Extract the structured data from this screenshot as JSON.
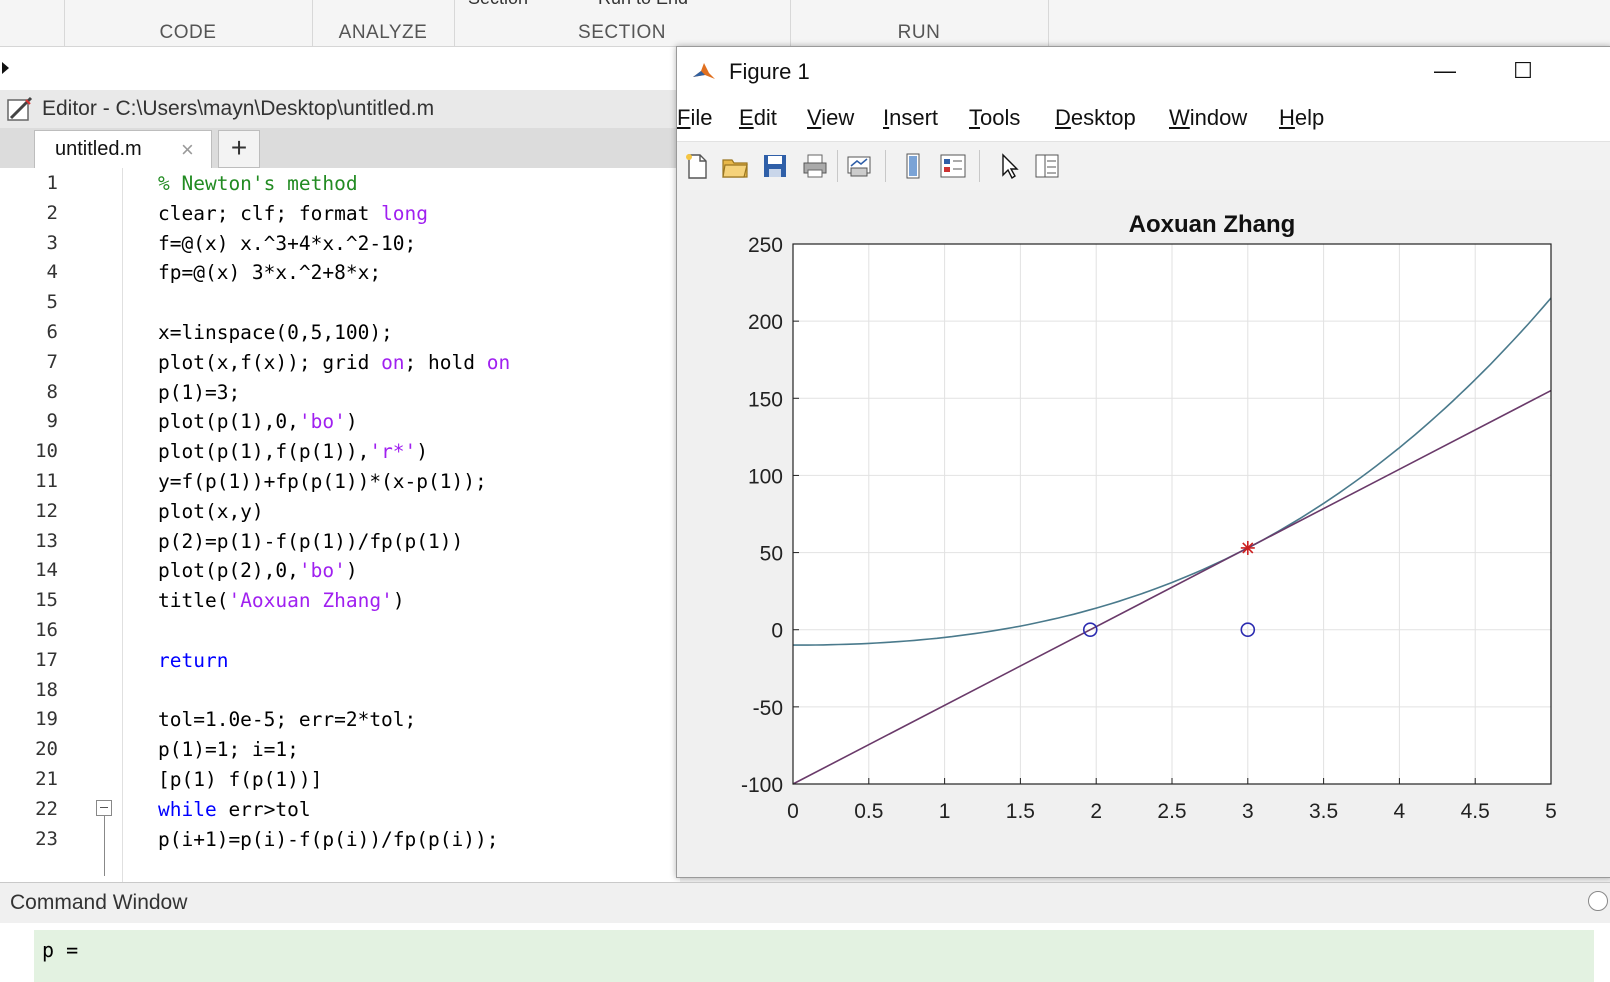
{
  "toolstrip": {
    "sections": [
      "CODE",
      "ANALYZE",
      "SECTION",
      "RUN"
    ],
    "partial_items": [
      "Section",
      "Run to End"
    ]
  },
  "editor": {
    "title": "Editor - C:\\Users\\mayn\\Desktop\\untitled.m",
    "tab_label": "untitled.m",
    "tab_close": "×",
    "new_tab": "+",
    "lines": [
      {
        "n": "1",
        "parts": [
          {
            "t": "% Newton's method",
            "c": "comment"
          }
        ]
      },
      {
        "n": "2",
        "parts": [
          {
            "t": "clear; clf; format ",
            "c": "pl"
          },
          {
            "t": "long",
            "c": "str"
          }
        ]
      },
      {
        "n": "3",
        "parts": [
          {
            "t": "f=@(x) x.^3+4*x.^2-10;",
            "c": "pl"
          }
        ]
      },
      {
        "n": "4",
        "parts": [
          {
            "t": "fp=@(x) 3*x.^2+8*x;",
            "c": "pl"
          }
        ]
      },
      {
        "n": "5",
        "parts": []
      },
      {
        "n": "6",
        "parts": [
          {
            "t": "x=linspace(0,5,100);",
            "c": "pl"
          }
        ]
      },
      {
        "n": "7",
        "parts": [
          {
            "t": "plot(x,f(x)); grid ",
            "c": "pl"
          },
          {
            "t": "on",
            "c": "str"
          },
          {
            "t": "; hold ",
            "c": "pl"
          },
          {
            "t": "on",
            "c": "str"
          }
        ]
      },
      {
        "n": "8",
        "parts": [
          {
            "t": "p(1)=3;",
            "c": "pl"
          }
        ]
      },
      {
        "n": "9",
        "parts": [
          {
            "t": "plot(p(1),0,",
            "c": "pl"
          },
          {
            "t": "'bo'",
            "c": "str"
          },
          {
            "t": ")",
            "c": "pl"
          }
        ]
      },
      {
        "n": "10",
        "parts": [
          {
            "t": "plot(p(1),f(p(1)),",
            "c": "pl"
          },
          {
            "t": "'r*'",
            "c": "str"
          },
          {
            "t": ")",
            "c": "pl"
          }
        ]
      },
      {
        "n": "11",
        "parts": [
          {
            "t": "y=f(p(1))+fp(p(1))*(x-p(1));",
            "c": "pl"
          }
        ]
      },
      {
        "n": "12",
        "parts": [
          {
            "t": "plot(x,y)",
            "c": "pl"
          }
        ]
      },
      {
        "n": "13",
        "parts": [
          {
            "t": "p(2)=p(1)-f(p(1))/fp(p(1))",
            "c": "pl"
          }
        ]
      },
      {
        "n": "14",
        "parts": [
          {
            "t": "plot(p(2),0,",
            "c": "pl"
          },
          {
            "t": "'bo'",
            "c": "str"
          },
          {
            "t": ")",
            "c": "pl"
          }
        ]
      },
      {
        "n": "15",
        "parts": [
          {
            "t": "title(",
            "c": "pl"
          },
          {
            "t": "'Aoxuan Zhang'",
            "c": "str"
          },
          {
            "t": ")",
            "c": "pl"
          }
        ]
      },
      {
        "n": "16",
        "parts": []
      },
      {
        "n": "17",
        "parts": [
          {
            "t": "return",
            "c": "kw"
          }
        ]
      },
      {
        "n": "18",
        "parts": []
      },
      {
        "n": "19",
        "parts": [
          {
            "t": "tol=1.0e-5; err=2*tol;",
            "c": "pl"
          }
        ]
      },
      {
        "n": "20",
        "parts": [
          {
            "t": "p(1)=1; i=1;",
            "c": "pl"
          }
        ]
      },
      {
        "n": "21",
        "parts": [
          {
            "t": "[p(1) f(p(1))]",
            "c": "pl"
          }
        ]
      },
      {
        "n": "22",
        "parts": [
          {
            "t": "while",
            "c": "kw"
          },
          {
            "t": " err>tol",
            "c": "pl"
          }
        ]
      },
      {
        "n": "23",
        "parts": [
          {
            "t": "p(i+1)=p(i)-f(p(i))/fp(p(i));",
            "c": "pl"
          }
        ]
      }
    ]
  },
  "figure": {
    "window_title": "Figure 1",
    "minimize": "—",
    "maximize": "☐",
    "menu": [
      {
        "key": "F",
        "rest": "ile"
      },
      {
        "key": "E",
        "rest": "dit"
      },
      {
        "key": "V",
        "rest": "iew"
      },
      {
        "key": "I",
        "rest": "nsert"
      },
      {
        "key": "T",
        "rest": "ools"
      },
      {
        "key": "D",
        "rest": "esktop"
      },
      {
        "key": "W",
        "rest": "indow"
      },
      {
        "key": "H",
        "rest": "elp"
      }
    ]
  },
  "chart_data": {
    "type": "line",
    "title": "Aoxuan Zhang",
    "xlabel": "",
    "ylabel": "",
    "xlim": [
      0,
      5
    ],
    "ylim": [
      -100,
      250
    ],
    "xticks": [
      "0",
      "0.5",
      "1",
      "1.5",
      "2",
      "2.5",
      "3",
      "3.5",
      "4",
      "4.5",
      "5"
    ],
    "yticks": [
      "250",
      "200",
      "150",
      "100",
      "50",
      "0",
      "-50",
      "-100"
    ],
    "grid": true,
    "series": [
      {
        "function": "x^3+4x^2-10",
        "color": "#4a7a8c",
        "x": [
          0,
          1,
          2,
          3,
          4,
          5
        ],
        "y": [
          -10,
          -5,
          14,
          53,
          118,
          215
        ]
      },
      {
        "function": "53+51(x-3)",
        "color": "#6a3a6a",
        "x": [
          0,
          5
        ],
        "y": [
          -100,
          155
        ]
      }
    ],
    "markers": [
      {
        "x": 3,
        "y": 0,
        "style": "bo",
        "color": "#2b2bb0"
      },
      {
        "x": 3,
        "y": 53,
        "style": "r*",
        "color": "#cc1f1f"
      },
      {
        "x": 1.9608,
        "y": 0,
        "style": "bo",
        "color": "#2b2bb0"
      }
    ]
  },
  "command_window": {
    "title": "Command Window",
    "text": "p ="
  }
}
